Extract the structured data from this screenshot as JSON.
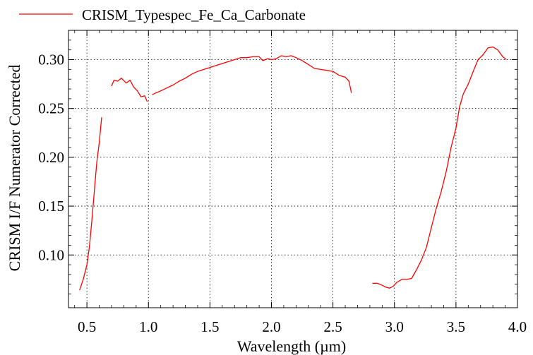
{
  "chart_data": {
    "type": "line",
    "title": "",
    "xlabel": "Wavelength (µm)",
    "ylabel": "CRISM I/F Numerator Corrected",
    "xlim": [
      0.35,
      4.0
    ],
    "ylim": [
      0.046,
      0.33
    ],
    "xticks": [
      0.5,
      1.0,
      1.5,
      2.0,
      2.5,
      3.0,
      3.5,
      4.0
    ],
    "xtick_labels": [
      "0.5",
      "1.0",
      "1.5",
      "2.0",
      "2.5",
      "3.0",
      "3.5",
      "4.0"
    ],
    "yticks": [
      0.1,
      0.15,
      0.2,
      0.25,
      0.3
    ],
    "ytick_labels": [
      "0.10",
      "0.15",
      "0.20",
      "0.25",
      "0.30"
    ],
    "grid": true,
    "legend_position": "top-left",
    "series": [
      {
        "name": "CRISM_Typespec_Fe_Ca_Carbonate",
        "color": "#ff0000",
        "segments": [
          [
            [
              0.44,
              0.064
            ],
            [
              0.47,
              0.075
            ],
            [
              0.5,
              0.09
            ],
            [
              0.52,
              0.108
            ],
            [
              0.54,
              0.135
            ],
            [
              0.56,
              0.165
            ],
            [
              0.58,
              0.195
            ],
            [
              0.6,
              0.215
            ],
            [
              0.62,
              0.241
            ]
          ],
          [
            [
              0.7,
              0.273
            ],
            [
              0.72,
              0.279
            ],
            [
              0.75,
              0.278
            ],
            [
              0.78,
              0.281
            ],
            [
              0.82,
              0.276
            ],
            [
              0.85,
              0.279
            ],
            [
              0.88,
              0.272
            ],
            [
              0.91,
              0.268
            ],
            [
              0.94,
              0.262
            ],
            [
              0.97,
              0.263
            ],
            [
              0.99,
              0.257
            ]
          ],
          [
            [
              1.03,
              0.264
            ],
            [
              1.06,
              0.266
            ],
            [
              1.1,
              0.268
            ],
            [
              1.15,
              0.271
            ],
            [
              1.2,
              0.274
            ],
            [
              1.25,
              0.278
            ],
            [
              1.3,
              0.281
            ],
            [
              1.35,
              0.285
            ],
            [
              1.4,
              0.288
            ],
            [
              1.45,
              0.29
            ],
            [
              1.5,
              0.292
            ],
            [
              1.55,
              0.294
            ],
            [
              1.6,
              0.296
            ],
            [
              1.65,
              0.298
            ],
            [
              1.7,
              0.3
            ],
            [
              1.75,
              0.302
            ],
            [
              1.8,
              0.302
            ],
            [
              1.85,
              0.303
            ],
            [
              1.9,
              0.303
            ],
            [
              1.93,
              0.299
            ],
            [
              1.97,
              0.301
            ],
            [
              2.0,
              0.3
            ],
            [
              2.04,
              0.301
            ],
            [
              2.08,
              0.304
            ],
            [
              2.12,
              0.303
            ],
            [
              2.16,
              0.304
            ],
            [
              2.2,
              0.302
            ],
            [
              2.25,
              0.299
            ],
            [
              2.3,
              0.295
            ],
            [
              2.35,
              0.291
            ],
            [
              2.4,
              0.29
            ],
            [
              2.45,
              0.289
            ],
            [
              2.5,
              0.288
            ],
            [
              2.55,
              0.284
            ],
            [
              2.6,
              0.282
            ],
            [
              2.63,
              0.278
            ],
            [
              2.65,
              0.266
            ]
          ],
          [
            [
              2.82,
              0.071
            ],
            [
              2.86,
              0.071
            ],
            [
              2.9,
              0.069
            ],
            [
              2.93,
              0.067
            ],
            [
              2.96,
              0.066
            ],
            [
              2.99,
              0.068
            ],
            [
              3.02,
              0.072
            ],
            [
              3.06,
              0.075
            ],
            [
              3.1,
              0.075
            ],
            [
              3.14,
              0.076
            ],
            [
              3.18,
              0.085
            ],
            [
              3.22,
              0.095
            ],
            [
              3.26,
              0.108
            ],
            [
              3.3,
              0.128
            ],
            [
              3.34,
              0.148
            ],
            [
              3.38,
              0.165
            ],
            [
              3.42,
              0.185
            ],
            [
              3.46,
              0.21
            ],
            [
              3.5,
              0.23
            ],
            [
              3.53,
              0.252
            ],
            [
              3.56,
              0.265
            ],
            [
              3.6,
              0.275
            ],
            [
              3.64,
              0.288
            ],
            [
              3.68,
              0.3
            ],
            [
              3.72,
              0.305
            ],
            [
              3.76,
              0.312
            ],
            [
              3.8,
              0.313
            ],
            [
              3.84,
              0.31
            ],
            [
              3.88,
              0.303
            ],
            [
              3.91,
              0.3
            ]
          ]
        ]
      }
    ]
  }
}
